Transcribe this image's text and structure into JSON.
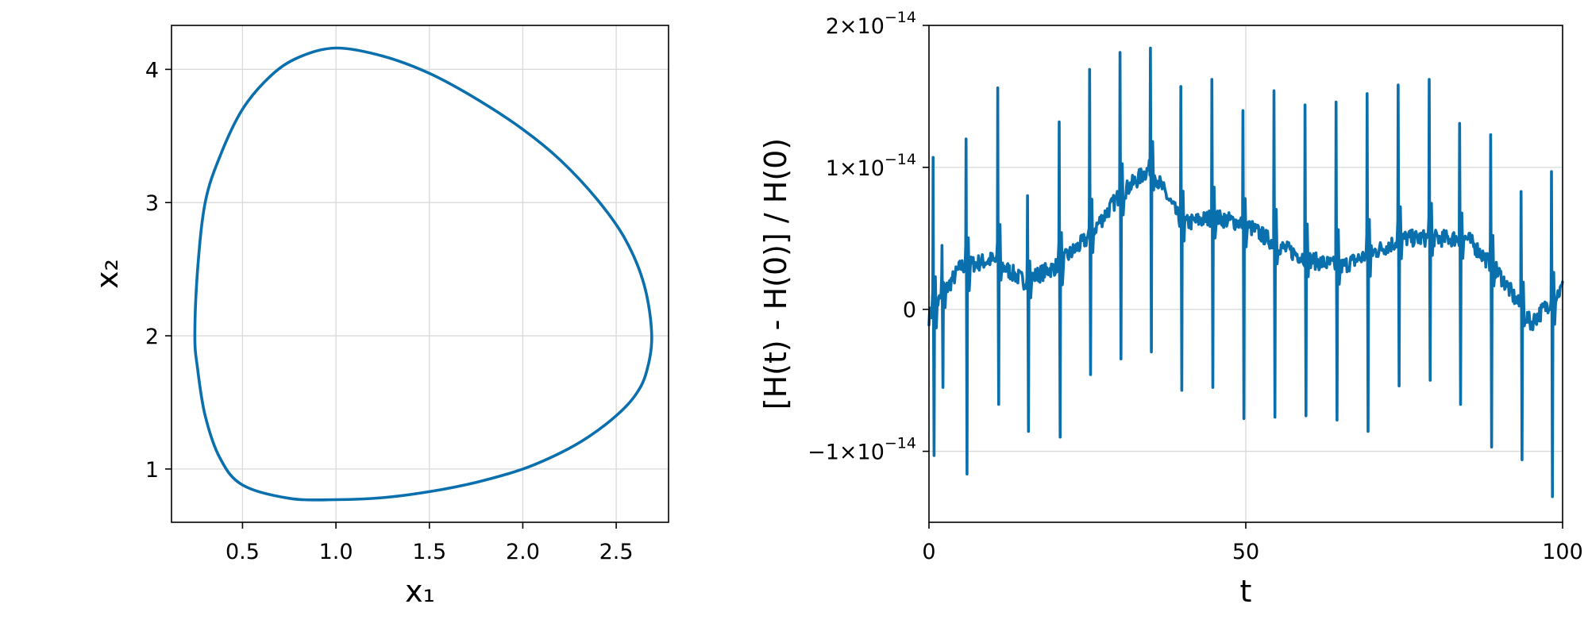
{
  "chart_data": [
    {
      "type": "line",
      "name": "phase-portrait",
      "xlabel": "x₁",
      "ylabel": "x₂",
      "xlim": [
        0.12,
        2.78
      ],
      "ylim": [
        0.6,
        4.33
      ],
      "xticks": [
        0.5,
        1.0,
        1.5,
        2.0,
        2.5
      ],
      "xtick_labels": [
        "0.5",
        "1.0",
        "1.5",
        "2.0",
        "2.5"
      ],
      "yticks": [
        1,
        2,
        3,
        4
      ],
      "ytick_labels": [
        "1",
        "2",
        "3",
        "4"
      ],
      "grid": true,
      "color": "#0a6fad",
      "series": [
        {
          "x": [
            1.0,
            1.25,
            1.5,
            1.75,
            2.0,
            2.2,
            2.4,
            2.55,
            2.65,
            2.69,
            2.66,
            2.6,
            2.5,
            2.35,
            2.2,
            2.0,
            1.75,
            1.5,
            1.25,
            1.0,
            0.75,
            0.5,
            0.38,
            0.3,
            0.26,
            0.245,
            0.26,
            0.3,
            0.38,
            0.5,
            0.65,
            0.8,
            1.0
          ],
          "y": [
            4.16,
            4.1,
            3.97,
            3.78,
            3.55,
            3.32,
            3.02,
            2.72,
            2.38,
            2.0,
            1.72,
            1.55,
            1.4,
            1.24,
            1.12,
            1.0,
            0.9,
            0.83,
            0.785,
            0.77,
            0.78,
            0.88,
            1.08,
            1.4,
            1.75,
            2.0,
            2.5,
            3.0,
            3.35,
            3.7,
            3.95,
            4.09,
            4.16
          ]
        }
      ]
    },
    {
      "type": "line",
      "name": "energy-error",
      "xlabel": "t",
      "ylabel": "[H(t) - H(0)] / H(0)",
      "xlim": [
        0,
        100
      ],
      "ylim": [
        -1.5e-14,
        2e-14
      ],
      "xticks": [
        0,
        50,
        100
      ],
      "xtick_labels": [
        "0",
        "50",
        "100"
      ],
      "yticks": [
        -1e-14,
        0,
        1e-14,
        2e-14
      ],
      "ytick_labels": [
        {
          "mant": "−1×10",
          "exp": "−14"
        },
        {
          "mant": "0",
          "exp": ""
        },
        {
          "mant": "1×10",
          "exp": "−14"
        },
        {
          "mant": "2×10",
          "exp": "−14"
        }
      ],
      "grid": true,
      "color": "#0a6fad",
      "baseline_x": [
        0,
        5,
        10,
        15,
        20,
        25,
        30,
        35,
        40,
        45,
        50,
        55,
        60,
        65,
        70,
        75,
        80,
        85,
        90,
        95,
        100
      ],
      "baseline_y": [
        -5e-16,
        3e-15,
        3.5e-15,
        2e-15,
        3e-15,
        5e-15,
        8e-15,
        1e-14,
        6e-15,
        6.5e-15,
        6e-15,
        4.5e-15,
        3.5e-15,
        3e-15,
        4e-15,
        5e-15,
        5e-15,
        5e-15,
        2.5e-15,
        -1e-15,
        1.5e-15
      ],
      "spikes": [
        {
          "t": 0.6,
          "hi": 1.07e-14,
          "lo": -1.03e-14
        },
        {
          "t": 2.0,
          "hi": 4.5e-15,
          "lo": -5.5e-15
        },
        {
          "t": 5.8,
          "hi": 1.2e-14,
          "lo": -1.16e-14
        },
        {
          "t": 10.8,
          "hi": 1.56e-14,
          "lo": -6.7e-15
        },
        {
          "t": 15.5,
          "hi": 8e-15,
          "lo": -8.6e-15
        },
        {
          "t": 20.5,
          "hi": 1.32e-14,
          "lo": -9e-15
        },
        {
          "t": 25.3,
          "hi": 1.69e-14,
          "lo": -4.6e-15
        },
        {
          "t": 30.1,
          "hi": 1.81e-14,
          "lo": -3.5e-15
        },
        {
          "t": 34.9,
          "hi": 1.84e-14,
          "lo": -3e-15
        },
        {
          "t": 39.7,
          "hi": 1.57e-14,
          "lo": -5.7e-15
        },
        {
          "t": 44.6,
          "hi": 1.62e-14,
          "lo": -5.5e-15
        },
        {
          "t": 49.5,
          "hi": 1.4e-14,
          "lo": -7.7e-15
        },
        {
          "t": 54.4,
          "hi": 1.54e-14,
          "lo": -7.6e-15
        },
        {
          "t": 59.3,
          "hi": 1.44e-14,
          "lo": -7.5e-15
        },
        {
          "t": 64.2,
          "hi": 1.46e-14,
          "lo": -7.8e-15
        },
        {
          "t": 69.1,
          "hi": 1.52e-14,
          "lo": -8.6e-15
        },
        {
          "t": 74.0,
          "hi": 1.58e-14,
          "lo": -5.4e-15
        },
        {
          "t": 78.9,
          "hi": 1.62e-14,
          "lo": -5e-15
        },
        {
          "t": 83.7,
          "hi": 1.31e-14,
          "lo": -6.7e-15
        },
        {
          "t": 88.6,
          "hi": 1.23e-14,
          "lo": -9.7e-15
        },
        {
          "t": 93.4,
          "hi": 8.3e-15,
          "lo": -1.06e-14
        },
        {
          "t": 98.2,
          "hi": 9.7e-15,
          "lo": -1.32e-14
        }
      ]
    }
  ]
}
